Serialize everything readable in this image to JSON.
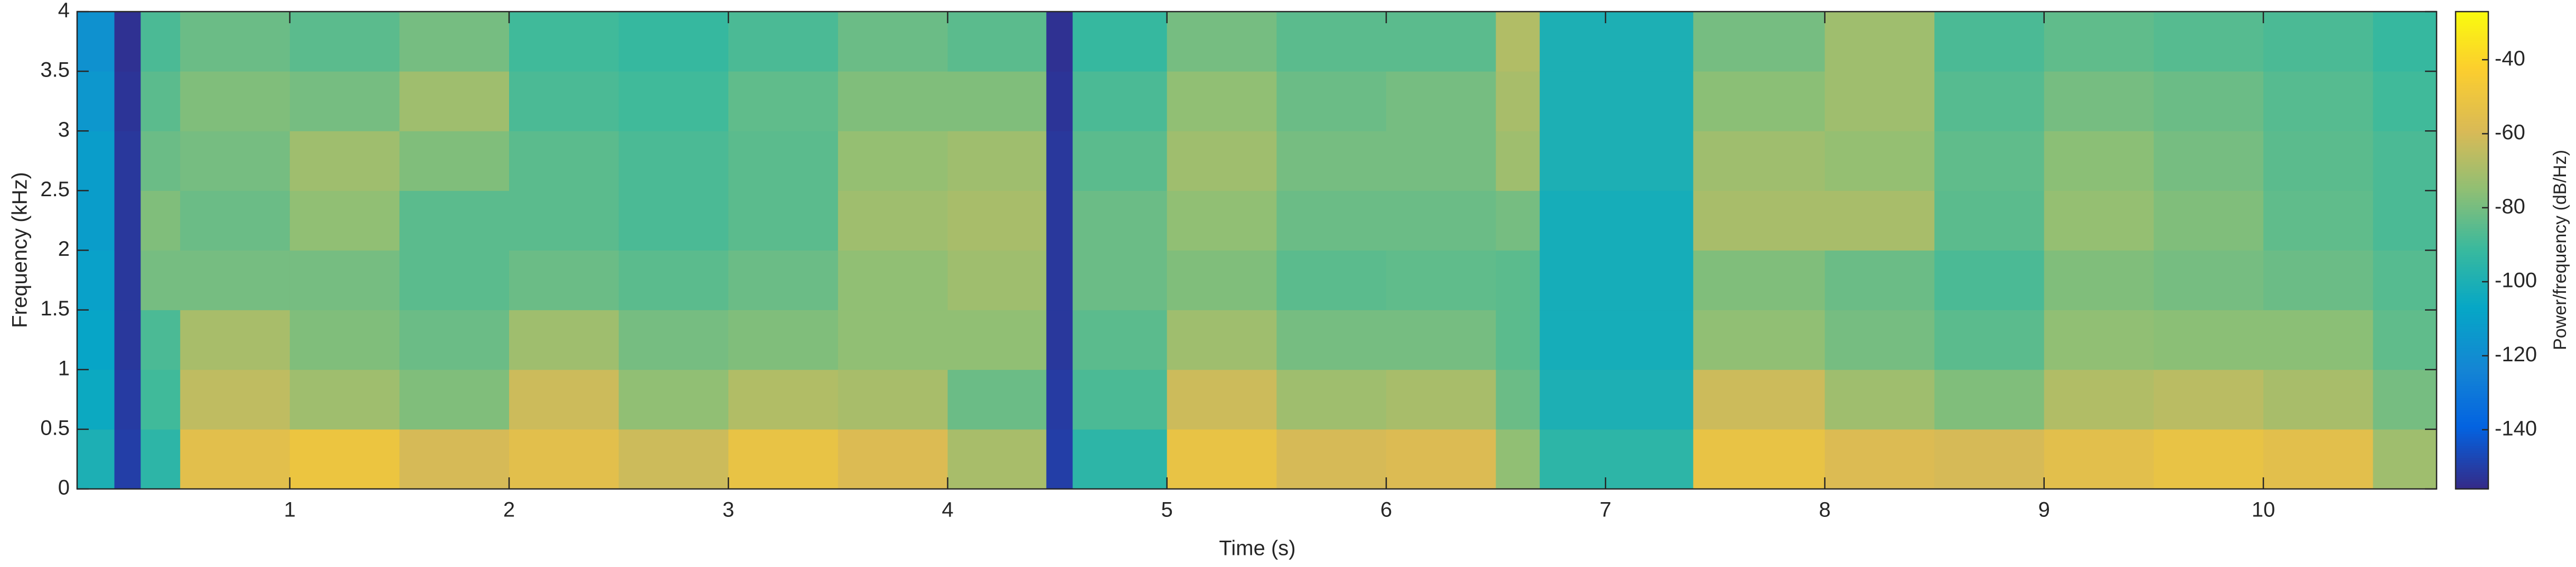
{
  "chart_data": {
    "type": "spectrogram",
    "xlabel": "Time (s)",
    "ylabel": "Frequency (kHz)",
    "colorbar_label": "Power/frequency (dB/Hz)",
    "colormap": "parula",
    "x_bins": [
      0.03,
      0.2,
      0.32,
      0.5,
      1.0,
      1.5,
      2.0,
      2.5,
      3.0,
      3.5,
      4.0,
      4.45,
      4.57,
      5.0,
      5.5,
      6.0,
      6.5,
      6.7,
      7.4,
      8.0,
      8.5,
      9.0,
      9.5,
      10.0,
      10.5,
      10.79
    ],
    "y_bins": [
      0,
      0.5,
      1,
      1.5,
      2,
      2.5,
      3,
      3.5,
      4
    ],
    "values": [
      [
        -100,
        -105,
        -108,
        -110,
        -112,
        -112,
        -115,
        -118
      ],
      [
        -150,
        -151,
        -152,
        -152,
        -152,
        -152,
        -153,
        -154
      ],
      [
        -95,
        -90,
        -88,
        -80,
        -78,
        -82,
        -85,
        -88
      ],
      [
        -55,
        -65,
        -70,
        -80,
        -82,
        -80,
        -78,
        -82
      ],
      [
        -50,
        -72,
        -78,
        -80,
        -75,
        -72,
        -80,
        -85
      ],
      [
        -60,
        -78,
        -82,
        -85,
        -85,
        -78,
        -72,
        -80
      ],
      [
        -55,
        -62,
        -72,
        -82,
        -85,
        -85,
        -88,
        -90
      ],
      [
        -62,
        -75,
        -80,
        -85,
        -88,
        -88,
        -90,
        -92
      ],
      [
        -52,
        -68,
        -78,
        -82,
        -85,
        -85,
        -84,
        -88
      ],
      [
        -58,
        -70,
        -75,
        -75,
        -72,
        -74,
        -78,
        -82
      ],
      [
        -70,
        -82,
        -75,
        -72,
        -70,
        -72,
        -78,
        -85
      ],
      [
        -150,
        -151,
        -152,
        -152,
        -152,
        -152,
        -153,
        -154
      ],
      [
        -95,
        -88,
        -85,
        -82,
        -82,
        -85,
        -88,
        -92
      ],
      [
        -52,
        -62,
        -72,
        -78,
        -75,
        -72,
        -75,
        -80
      ],
      [
        -60,
        -72,
        -80,
        -85,
        -82,
        -80,
        -82,
        -85
      ],
      [
        -58,
        -70,
        -80,
        -84,
        -82,
        -80,
        -80,
        -85
      ],
      [
        -75,
        -82,
        -85,
        -85,
        -80,
        -72,
        -70,
        -68
      ],
      [
        -95,
        -100,
        -102,
        -102,
        -102,
        -100,
        -100,
        -100
      ],
      [
        -52,
        -62,
        -75,
        -78,
        -70,
        -72,
        -76,
        -80
      ],
      [
        -58,
        -72,
        -80,
        -82,
        -70,
        -74,
        -72,
        -72
      ],
      [
        -60,
        -78,
        -85,
        -88,
        -85,
        -84,
        -86,
        -88
      ],
      [
        -55,
        -68,
        -75,
        -78,
        -74,
        -76,
        -80,
        -84
      ],
      [
        -52,
        -66,
        -76,
        -80,
        -78,
        -80,
        -82,
        -86
      ],
      [
        -55,
        -70,
        -76,
        -82,
        -84,
        -85,
        -86,
        -88
      ],
      [
        -72,
        -80,
        -84,
        -86,
        -88,
        -88,
        -90,
        -92
      ]
    ],
    "xlim": [
      0.03,
      10.79
    ],
    "xticks": [
      1,
      2,
      3,
      4,
      5,
      6,
      7,
      8,
      9,
      10
    ],
    "ylim": [
      0,
      4
    ],
    "yticks": [
      0,
      0.5,
      1,
      1.5,
      2,
      2.5,
      3,
      3.5,
      4
    ],
    "clim": [
      -156,
      -27
    ],
    "cticks": [
      -140,
      -120,
      -100,
      -80,
      -60,
      -40
    ],
    "grid": false
  }
}
